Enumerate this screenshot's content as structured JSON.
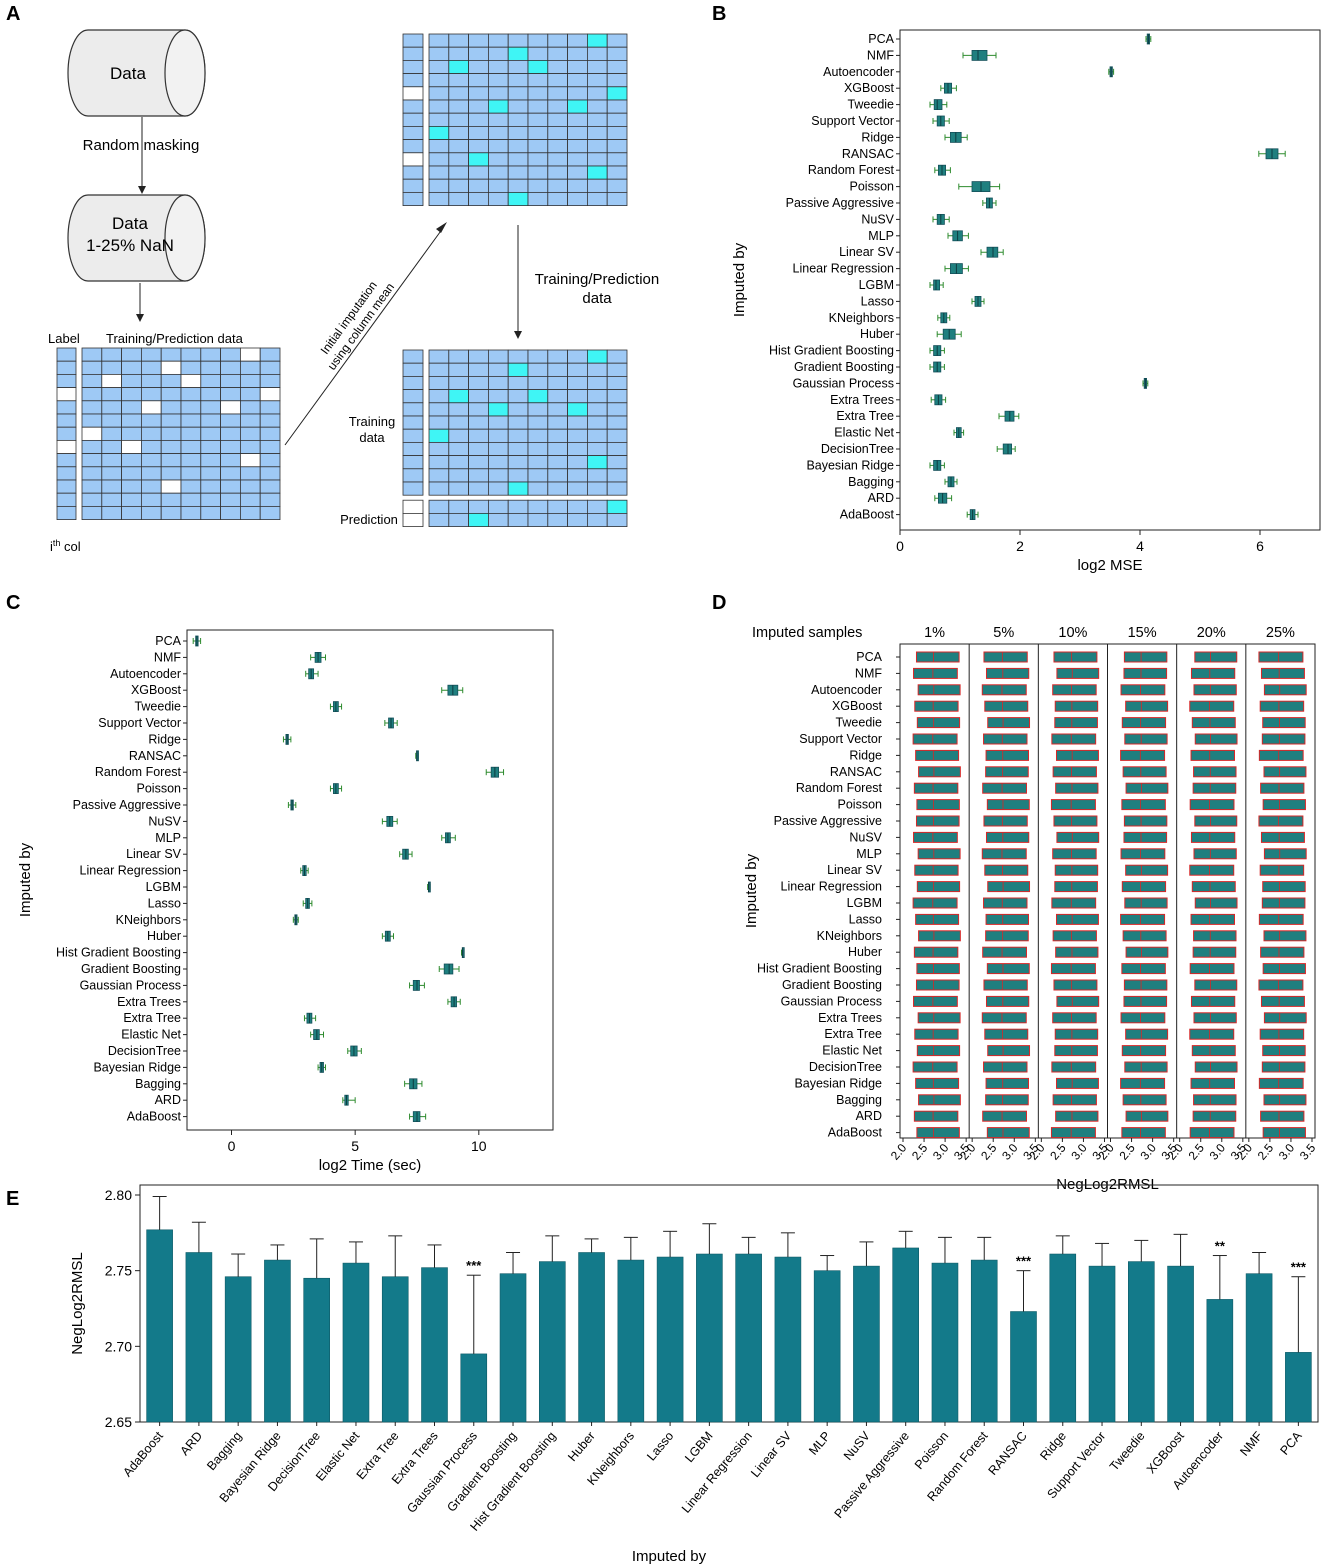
{
  "colors": {
    "teal": "#137a8a",
    "box": "#1f7f7f",
    "whisker": "#2e8b2e",
    "cell": "#9ec9f5",
    "cellMask": "#ffffff",
    "cellImpute": "#3ff5f5",
    "grid": "#333333",
    "redEdge": "#d62828"
  },
  "panelA": {
    "letter": "A",
    "data1": "Data",
    "masking": "Random masking",
    "data2_line1": "Data",
    "data2_line2": "1-25% NaN",
    "label": "Label",
    "train_pred": "Training/Prediction data",
    "ith": "i",
    "ith_sup": "th",
    "ith_suffix": " col",
    "initial_line1": "Initial imputation",
    "initial_line2": "using column mean",
    "tp_line1": "Training/Prediction",
    "tp_line2": "data",
    "training_line1": "Training",
    "training_line2": "data",
    "prediction": "Prediction"
  },
  "panelB": {
    "letter": "B"
  },
  "panelC": {
    "letter": "C"
  },
  "panelD": {
    "letter": "D"
  },
  "panelE": {
    "letter": "E"
  },
  "chart_data": [
    {
      "panel": "B",
      "type": "box",
      "orientation": "horizontal",
      "xlabel": "log2 MSE",
      "ylabel": "Imputed by",
      "xlim": [
        0,
        7
      ],
      "xticks": [
        0,
        2,
        4,
        6
      ],
      "categories": [
        "PCA",
        "NMF",
        "Autoencoder",
        "XGBoost",
        "Tweedie",
        "Support Vector",
        "Ridge",
        "RANSAC",
        "Random Forest",
        "Poisson",
        "Passive Aggressive",
        "NuSV",
        "MLP",
        "Linear SV",
        "Linear Regression",
        "LGBM",
        "Lasso",
        "KNeighbors",
        "Huber",
        "Hist Gradient Boosting",
        "Gradient Boosting",
        "Gaussian Process",
        "Extra Trees",
        "Extra Tree",
        "Elastic Net",
        "DecisionTree",
        "Bayesian Ridge",
        "Bagging",
        "ARD",
        "AdaBoost"
      ],
      "boxes": [
        [
          4.1,
          4.12,
          4.14,
          4.16,
          4.18
        ],
        [
          1.05,
          1.2,
          1.3,
          1.45,
          1.6
        ],
        [
          3.48,
          3.5,
          3.52,
          3.54,
          3.56
        ],
        [
          0.68,
          0.74,
          0.8,
          0.86,
          0.94
        ],
        [
          0.5,
          0.57,
          0.62,
          0.7,
          0.78
        ],
        [
          0.55,
          0.62,
          0.68,
          0.74,
          0.82
        ],
        [
          0.75,
          0.84,
          0.93,
          1.02,
          1.12
        ],
        [
          5.98,
          6.1,
          6.2,
          6.3,
          6.42
        ],
        [
          0.58,
          0.64,
          0.7,
          0.76,
          0.84
        ],
        [
          0.98,
          1.2,
          1.35,
          1.5,
          1.66
        ],
        [
          1.38,
          1.44,
          1.49,
          1.54,
          1.6
        ],
        [
          0.55,
          0.62,
          0.68,
          0.74,
          0.82
        ],
        [
          0.8,
          0.88,
          0.96,
          1.04,
          1.14
        ],
        [
          1.35,
          1.45,
          1.55,
          1.63,
          1.72
        ],
        [
          0.75,
          0.84,
          0.94,
          1.04,
          1.14
        ],
        [
          0.5,
          0.56,
          0.6,
          0.66,
          0.72
        ],
        [
          1.2,
          1.25,
          1.3,
          1.35,
          1.4
        ],
        [
          0.63,
          0.68,
          0.73,
          0.78,
          0.83
        ],
        [
          0.62,
          0.72,
          0.82,
          0.92,
          1.02
        ],
        [
          0.5,
          0.56,
          0.62,
          0.68,
          0.74
        ],
        [
          0.5,
          0.56,
          0.62,
          0.68,
          0.74
        ],
        [
          4.05,
          4.07,
          4.09,
          4.11,
          4.13
        ],
        [
          0.52,
          0.58,
          0.64,
          0.7,
          0.76
        ],
        [
          1.65,
          1.75,
          1.83,
          1.9,
          1.98
        ],
        [
          0.9,
          0.94,
          0.98,
          1.02,
          1.06
        ],
        [
          1.62,
          1.72,
          1.8,
          1.86,
          1.92
        ],
        [
          0.5,
          0.56,
          0.62,
          0.68,
          0.74
        ],
        [
          0.75,
          0.8,
          0.85,
          0.9,
          0.95
        ],
        [
          0.58,
          0.64,
          0.71,
          0.78,
          0.86
        ],
        [
          1.12,
          1.17,
          1.21,
          1.25,
          1.3
        ]
      ]
    },
    {
      "panel": "C",
      "type": "box",
      "orientation": "horizontal",
      "xlabel": "log2 Time (sec)",
      "ylabel": "Imputed by",
      "xlim": [
        -1.8,
        13
      ],
      "xticks": [
        0,
        5,
        10
      ],
      "categories": [
        "PCA",
        "NMF",
        "Autoencoder",
        "XGBoost",
        "Tweedie",
        "Support Vector",
        "Ridge",
        "RANSAC",
        "Random Forest",
        "Poisson",
        "Passive Aggressive",
        "NuSV",
        "MLP",
        "Linear SV",
        "Linear Regression",
        "LGBM",
        "Lasso",
        "KNeighbors",
        "Huber",
        "Hist Gradient Boosting",
        "Gradient Boosting",
        "Gaussian Process",
        "Extra Trees",
        "Extra Tree",
        "Elastic Net",
        "DecisionTree",
        "Bayesian Ridge",
        "Bagging",
        "ARD",
        "AdaBoost"
      ],
      "boxes": [
        [
          -1.55,
          -1.45,
          -1.4,
          -1.35,
          -1.25
        ],
        [
          3.2,
          3.38,
          3.5,
          3.62,
          3.8
        ],
        [
          3.0,
          3.12,
          3.22,
          3.32,
          3.5
        ],
        [
          8.5,
          8.75,
          8.95,
          9.15,
          9.35
        ],
        [
          4.0,
          4.12,
          4.22,
          4.32,
          4.45
        ],
        [
          6.2,
          6.35,
          6.45,
          6.55,
          6.7
        ],
        [
          2.1,
          2.2,
          2.25,
          2.3,
          2.4
        ],
        [
          7.45,
          7.48,
          7.5,
          7.52,
          7.55
        ],
        [
          10.3,
          10.5,
          10.65,
          10.8,
          11.0
        ],
        [
          4.0,
          4.12,
          4.22,
          4.32,
          4.45
        ],
        [
          2.3,
          2.4,
          2.45,
          2.5,
          2.6
        ],
        [
          6.1,
          6.28,
          6.4,
          6.52,
          6.7
        ],
        [
          8.5,
          8.65,
          8.75,
          8.85,
          9.05
        ],
        [
          6.8,
          6.92,
          7.05,
          7.15,
          7.3
        ],
        [
          2.8,
          2.88,
          2.95,
          3.02,
          3.1
        ],
        [
          7.93,
          7.96,
          7.98,
          8.0,
          8.03
        ],
        [
          2.9,
          3.0,
          3.08,
          3.15,
          3.25
        ],
        [
          2.5,
          2.56,
          2.6,
          2.65,
          2.7
        ],
        [
          6.1,
          6.22,
          6.32,
          6.42,
          6.55
        ],
        [
          9.3,
          9.33,
          9.35,
          9.37,
          9.4
        ],
        [
          8.4,
          8.6,
          8.8,
          8.95,
          9.2
        ],
        [
          7.2,
          7.35,
          7.5,
          7.6,
          7.8
        ],
        [
          8.75,
          8.88,
          9.0,
          9.1,
          9.25
        ],
        [
          2.95,
          3.05,
          3.15,
          3.25,
          3.4
        ],
        [
          3.2,
          3.32,
          3.45,
          3.55,
          3.72
        ],
        [
          4.7,
          4.82,
          4.95,
          5.08,
          5.25
        ],
        [
          3.5,
          3.58,
          3.65,
          3.72,
          3.8
        ],
        [
          7.0,
          7.2,
          7.35,
          7.5,
          7.7
        ],
        [
          4.5,
          4.58,
          4.65,
          4.72,
          5.0
        ],
        [
          7.2,
          7.35,
          7.5,
          7.62,
          7.85
        ]
      ]
    },
    {
      "panel": "D",
      "type": "box",
      "orientation": "horizontal",
      "title": "Imputed samples",
      "facets": [
        "1%",
        "5%",
        "10%",
        "15%",
        "20%",
        "25%"
      ],
      "xlabel": "NegLog2RMSL",
      "ylabel": "Imputed by",
      "xlim": [
        2.0,
        3.5
      ],
      "xticks": [
        2.0,
        2.5,
        3.0,
        3.5
      ],
      "categories": [
        "PCA",
        "NMF",
        "Autoencoder",
        "XGBoost",
        "Tweedie",
        "Support Vector",
        "Ridge",
        "RANSAC",
        "Random Forest",
        "Poisson",
        "Passive Aggressive",
        "NuSV",
        "MLP",
        "Linear SV",
        "Linear Regression",
        "LGBM",
        "Lasso",
        "KNeighbors",
        "Huber",
        "Hist Gradient Boosting",
        "Gradient Boosting",
        "Gaussian Process",
        "Extra Trees",
        "Extra Tree",
        "Elastic Net",
        "DecisionTree",
        "Bayesian Ridge",
        "Bagging",
        "ARD",
        "AdaBoost"
      ],
      "note": "Each box spans roughly 2.3 to 3.35 with median near 2.75 in every facet."
    },
    {
      "panel": "E",
      "type": "bar",
      "xlabel": "Imputed by",
      "ylabel": "NegLog2RMSL",
      "ylim": [
        2.65,
        2.8
      ],
      "yticks": [
        2.65,
        2.7,
        2.75,
        2.8
      ],
      "categories": [
        "AdaBoost",
        "ARD",
        "Bagging",
        "Bayesian Ridge",
        "DecisionTree",
        "Elastic Net",
        "Extra Tree",
        "Extra Trees",
        "Gaussian Process",
        "Gradient Boosting",
        "Hist Gradient Boosting",
        "Huber",
        "KNeighbors",
        "Lasso",
        "LGBM",
        "Linear Regression",
        "Linear SV",
        "MLP",
        "NuSV",
        "Passive Aggressive",
        "Poisson",
        "Random Forest",
        "RANSAC",
        "Ridge",
        "Support Vector",
        "Tweedie",
        "XGBoost",
        "Autoencoder",
        "NMF",
        "PCA"
      ],
      "values": [
        2.777,
        2.762,
        2.746,
        2.757,
        2.745,
        2.755,
        2.746,
        2.752,
        2.695,
        2.748,
        2.756,
        2.762,
        2.757,
        2.759,
        2.761,
        2.761,
        2.759,
        2.75,
        2.753,
        2.765,
        2.755,
        2.757,
        2.723,
        2.761,
        2.753,
        2.756,
        2.753,
        2.731,
        2.748,
        2.696
      ],
      "errors": [
        0.022,
        0.02,
        0.015,
        0.01,
        0.026,
        0.014,
        0.027,
        0.015,
        0.052,
        0.014,
        0.017,
        0.009,
        0.015,
        0.017,
        0.02,
        0.011,
        0.016,
        0.01,
        0.016,
        0.011,
        0.017,
        0.015,
        0.027,
        0.012,
        0.015,
        0.014,
        0.021,
        0.029,
        0.014,
        0.05
      ],
      "annotations": [
        {
          "category": "Gaussian Process",
          "text": "***"
        },
        {
          "category": "RANSAC",
          "text": "***"
        },
        {
          "category": "Autoencoder",
          "text": "**"
        },
        {
          "category": "PCA",
          "text": "***"
        }
      ]
    }
  ]
}
